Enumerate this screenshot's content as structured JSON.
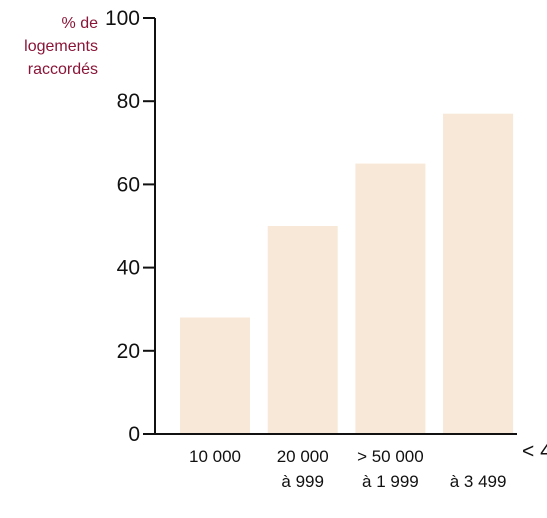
{
  "chart_data": {
    "type": "bar",
    "ylabel": [
      "% de",
      "logements",
      "raccordés"
    ],
    "ylim": [
      0,
      100
    ],
    "yticks": [
      0,
      20,
      40,
      60,
      80,
      100
    ],
    "categories": [
      [
        "10 000",
        ""
      ],
      [
        "20 000",
        "à 999"
      ],
      [
        "> 50 000",
        "à 1 999"
      ],
      [
        "",
        "à 3 499"
      ]
    ],
    "values": [
      28,
      50,
      65,
      77
    ],
    "x_axis_end_label": "< 4",
    "colors": {
      "bar": "#f8e8d7",
      "axis": "#111111",
      "ylabel": "#8a1538"
    }
  }
}
